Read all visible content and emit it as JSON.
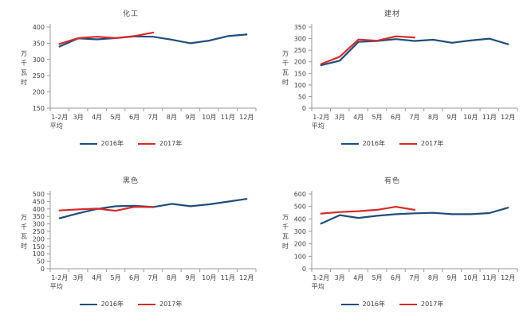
{
  "page": {
    "background": "#ffffff"
  },
  "colors": {
    "series_2016": "#1F4E79",
    "series_2017": "#D62B2B",
    "text": "#404040",
    "axis": "#999999"
  },
  "chart_data": [
    {
      "type": "line",
      "title": "化工",
      "ylabel": "万千瓦时",
      "ylim": [
        150,
        400
      ],
      "ytick_step": 50,
      "grid": false,
      "legend_position": "bottom",
      "categories": [
        "1-2月",
        "3月",
        "4月",
        "5月",
        "6月",
        "7月",
        "8月",
        "9月",
        "10月",
        "11月",
        "12月"
      ],
      "first_category_line2": "平均",
      "series": [
        {
          "name": "2016年",
          "color": "#1F4E79",
          "values": [
            340,
            365,
            362,
            366,
            371,
            370,
            361,
            350,
            358,
            372,
            377
          ]
        },
        {
          "name": "2017年",
          "color": "#D62B2B",
          "values": [
            348,
            366,
            370,
            366,
            372,
            383
          ]
        }
      ]
    },
    {
      "type": "line",
      "title": "建材",
      "ylabel": "万千瓦时",
      "ylim": [
        0,
        350
      ],
      "ytick_step": 50,
      "grid": false,
      "legend_position": "bottom",
      "categories": [
        "1-2月",
        "3月",
        "4月",
        "5月",
        "6月",
        "7月",
        "8月",
        "9月",
        "10月",
        "11月",
        "12月"
      ],
      "first_category_line2": "平均",
      "series": [
        {
          "name": "2016年",
          "color": "#1F4E79",
          "values": [
            185,
            205,
            286,
            290,
            298,
            290,
            295,
            282,
            292,
            300,
            276
          ]
        },
        {
          "name": "2017年",
          "color": "#D62B2B",
          "values": [
            190,
            222,
            296,
            291,
            310,
            305
          ]
        }
      ]
    },
    {
      "type": "line",
      "title": "黑色",
      "ylabel": "万千瓦时",
      "ylim": [
        0,
        500
      ],
      "ytick_step": 50,
      "grid": false,
      "legend_position": "bottom",
      "categories": [
        "1-2月",
        "3月",
        "4月",
        "5月",
        "6月",
        "7月",
        "8月",
        "9月",
        "10月",
        "11月",
        "12月"
      ],
      "first_category_line2": "平均",
      "series": [
        {
          "name": "2016年",
          "color": "#1F4E79",
          "values": [
            338,
            371,
            400,
            418,
            421,
            413,
            434,
            418,
            431,
            449,
            467
          ]
        },
        {
          "name": "2017年",
          "color": "#D62B2B",
          "values": [
            390,
            397,
            402,
            388,
            414,
            412
          ]
        }
      ]
    },
    {
      "type": "line",
      "title": "有色",
      "ylabel": "万千瓦时",
      "ylim": [
        0,
        600
      ],
      "ytick_step": 100,
      "grid": false,
      "legend_position": "bottom",
      "categories": [
        "1-2月",
        "3月",
        "4月",
        "5月",
        "6月",
        "7月",
        "8月",
        "9月",
        "10月",
        "11月",
        "12月"
      ],
      "first_category_line2": "平均",
      "series": [
        {
          "name": "2016年",
          "color": "#1F4E79",
          "values": [
            362,
            430,
            408,
            425,
            438,
            445,
            449,
            438,
            438,
            447,
            490
          ]
        },
        {
          "name": "2017年",
          "color": "#D62B2B",
          "values": [
            443,
            455,
            462,
            473,
            497,
            473
          ]
        }
      ]
    }
  ]
}
